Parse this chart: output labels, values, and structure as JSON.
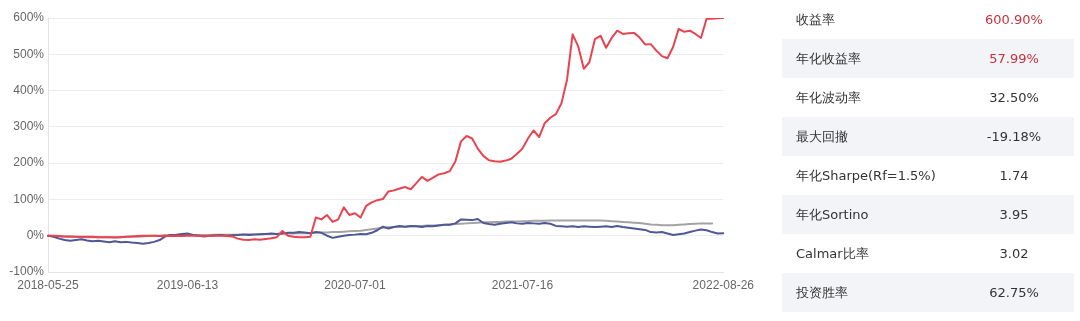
{
  "chart_data": [
    {
      "type": "line",
      "categories": [
        "2018-05-25",
        null,
        null,
        null,
        null,
        null,
        null,
        null,
        null,
        null,
        null,
        null,
        null,
        null,
        null,
        null,
        null,
        null,
        null,
        null,
        null,
        null,
        null,
        null,
        null,
        "2019-06-13",
        null,
        null,
        null,
        null,
        null,
        null,
        null,
        null,
        null,
        null,
        null,
        null,
        null,
        null,
        null,
        null,
        null,
        null,
        null,
        null,
        null,
        null,
        null,
        null,
        null,
        null,
        null,
        null,
        null,
        "2020-07-01",
        null,
        null,
        null,
        null,
        null,
        null,
        null,
        null,
        null,
        null,
        null,
        null,
        null,
        null,
        null,
        null,
        null,
        null,
        null,
        null,
        null,
        null,
        null,
        null,
        null,
        null,
        null,
        null,
        null,
        "2021-07-16",
        null,
        null,
        null,
        null,
        null,
        null,
        null,
        null,
        null,
        null,
        null,
        null,
        null,
        null,
        null,
        null,
        null,
        null,
        null,
        null,
        null,
        null,
        null,
        null,
        null,
        null,
        null,
        null,
        null,
        null,
        null,
        null,
        null,
        null,
        null,
        "2022-08-26"
      ],
      "series": [
        {
          "color": "#e8434f",
          "values": [
            0,
            0,
            -1,
            -2,
            -2,
            -3,
            -3,
            -3,
            -3,
            -4,
            -4,
            -4,
            -5,
            -4,
            -3,
            -2,
            -1,
            0,
            0,
            0,
            -1,
            0,
            -1,
            0,
            -1,
            0,
            0,
            0,
            -1,
            -1,
            0,
            0,
            -1,
            -2,
            -8,
            -11,
            -12,
            -10,
            -11,
            -9,
            -7,
            -4,
            13,
            0,
            -3,
            -4,
            -4,
            -3,
            50,
            45,
            57,
            38,
            45,
            78,
            57,
            62,
            50,
            82,
            92,
            98,
            101,
            122,
            125,
            130,
            134,
            128,
            145,
            162,
            151,
            160,
            169,
            172,
            178,
            205,
            260,
            275,
            268,
            240,
            220,
            208,
            205,
            204,
            207,
            212,
            225,
            240,
            268,
            290,
            272,
            310,
            325,
            335,
            365,
            430,
            555,
            522,
            460,
            478,
            542,
            551,
            518,
            545,
            565,
            556,
            558,
            559,
            546,
            527,
            528,
            510,
            495,
            489,
            520,
            570,
            562,
            565,
            556,
            545,
            598,
            598,
            599,
            600
          ]
        },
        {
          "color": "#4f5894",
          "values": [
            0,
            -3,
            -8,
            -12,
            -14,
            -12,
            -10,
            -13,
            -15,
            -14,
            -16,
            -18,
            -15,
            -18,
            -17,
            -19,
            -20,
            -22,
            -20,
            -17,
            -12,
            -2,
            2,
            3,
            5,
            6,
            2,
            0,
            -2,
            0,
            1,
            2,
            0,
            1,
            2,
            3,
            2,
            3,
            4,
            5,
            6,
            5,
            6,
            8,
            8,
            10,
            9,
            7,
            10,
            8,
            0,
            -6,
            -3,
            0,
            2,
            3,
            5,
            4,
            8,
            15,
            25,
            20,
            24,
            27,
            25,
            27,
            26,
            24,
            27,
            26,
            28,
            30,
            30,
            34,
            45,
            44,
            43,
            46,
            35,
            32,
            30,
            33,
            35,
            37,
            34,
            33,
            35,
            34,
            33,
            35,
            33,
            27,
            26,
            25,
            26,
            24,
            26,
            25,
            24,
            25,
            26,
            24,
            27,
            24,
            22,
            20,
            18,
            16,
            10,
            9,
            10,
            6,
            2,
            4,
            6,
            10,
            14,
            17,
            15,
            10,
            6,
            7
          ]
        },
        {
          "color": "#a3a3a3",
          "values": [
            0,
            -1,
            -2,
            -3,
            -3,
            -3,
            -4,
            -4,
            -4,
            -4,
            -4,
            -4,
            -4,
            -4,
            -3,
            -3,
            -3,
            -2,
            -1,
            0,
            0,
            1,
            2,
            2,
            2,
            2,
            2,
            2,
            2,
            2,
            3,
            3,
            3,
            3,
            3,
            4,
            4,
            4,
            4,
            5,
            5,
            5,
            6,
            6,
            6,
            7,
            7,
            7,
            8,
            9,
            9,
            10,
            10,
            11,
            12,
            13,
            14,
            16,
            18,
            20,
            22,
            23,
            24,
            25,
            25,
            26,
            26,
            27,
            28,
            28,
            29,
            30,
            31,
            32,
            33,
            34,
            35,
            36,
            37,
            37,
            38,
            38,
            39,
            39,
            39,
            40,
            40,
            41,
            41,
            41,
            42,
            42,
            42,
            42,
            42,
            42,
            42,
            42,
            42,
            42,
            41,
            40,
            39,
            38,
            37,
            36,
            35,
            33,
            31,
            30,
            29,
            29,
            29,
            30,
            31,
            32,
            33,
            34,
            34,
            34,
            null,
            null
          ]
        }
      ],
      "ylim": [
        -100,
        600
      ],
      "yticks": [
        {
          "value": -100,
          "label": "-100%"
        },
        {
          "value": 0,
          "label": "0%"
        },
        {
          "value": 100,
          "label": "100%"
        },
        {
          "value": 200,
          "label": "200%"
        },
        {
          "value": 300,
          "label": "300%"
        },
        {
          "value": 400,
          "label": "400%"
        },
        {
          "value": 500,
          "label": "500%"
        },
        {
          "value": 600,
          "label": "600%"
        }
      ],
      "grid": "y",
      "legend": false,
      "marker": "none",
      "line_style": "solid"
    },
    {
      "type": "other",
      "categories": [
        "收益率",
        "年化收益率",
        "年化波动率",
        "最大回撤",
        "年化Sharpe(Rf=1.5%)",
        "年化Sortino",
        "Calmar比率",
        "投资胜率"
      ],
      "value_labels": [
        "600.90%",
        "57.99%",
        "32.50%",
        "-19.18%",
        "1.74",
        "3.95",
        "3.02",
        "62.75%"
      ]
    }
  ]
}
